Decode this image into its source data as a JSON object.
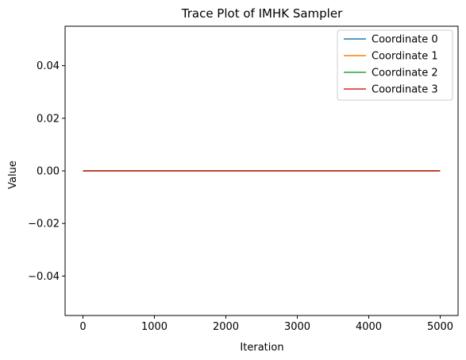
{
  "chart_data": {
    "type": "line",
    "title": "Trace Plot of IMHK Sampler",
    "xlabel": "Iteration",
    "ylabel": "Value",
    "xlim": [
      -250,
      5250
    ],
    "ylim": [
      -0.055,
      0.055
    ],
    "xticks": [
      0,
      1000,
      2000,
      3000,
      4000,
      5000
    ],
    "xtick_labels": [
      "0",
      "1000",
      "2000",
      "3000",
      "4000",
      "5000"
    ],
    "yticks": [
      -0.04,
      -0.02,
      0.0,
      0.02,
      0.04
    ],
    "ytick_labels": [
      "−0.04",
      "−0.02",
      "0.00",
      "0.02",
      "0.04"
    ],
    "grid": false,
    "legend_position": "top-right",
    "series": [
      {
        "name": "Coordinate 0",
        "color": "#1f77b4",
        "x": [
          0,
          5000
        ],
        "y": [
          0,
          0
        ]
      },
      {
        "name": "Coordinate 1",
        "color": "#ff7f0e",
        "x": [
          0,
          5000
        ],
        "y": [
          0,
          0
        ]
      },
      {
        "name": "Coordinate 2",
        "color": "#2ca02c",
        "x": [
          0,
          5000
        ],
        "y": [
          0,
          0
        ]
      },
      {
        "name": "Coordinate 3",
        "color": "#d62728",
        "x": [
          0,
          5000
        ],
        "y": [
          0,
          0
        ]
      }
    ]
  }
}
